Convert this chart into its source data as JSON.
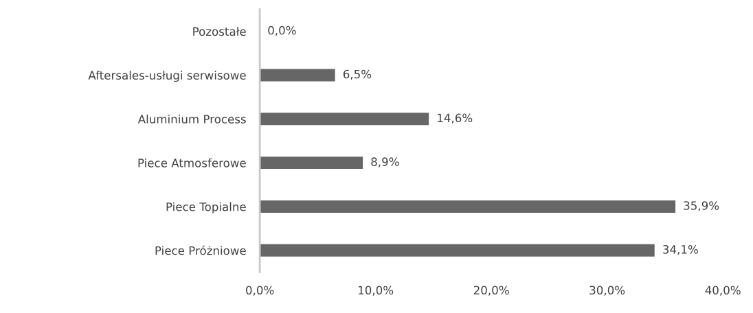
{
  "chart_data": {
    "type": "bar",
    "orientation": "horizontal",
    "categories": [
      "Pozostałe",
      "Aftersales-usługi serwisowe",
      "Aluminium Process",
      "Piece Atmosferowe",
      "Piece Topialne",
      "Piece Próżniowe"
    ],
    "values": [
      0.0,
      6.5,
      14.6,
      8.9,
      35.9,
      34.1
    ],
    "value_labels": [
      "0,0%",
      "6,5%",
      "14,6%",
      "8,9%",
      "35,9%",
      "34,1%"
    ],
    "color": "#666666",
    "xlim": [
      0,
      40
    ],
    "xticks": [
      {
        "value": 0,
        "label": "0,0%"
      },
      {
        "value": 10,
        "label": "10,0%"
      },
      {
        "value": 20,
        "label": "20,0%"
      },
      {
        "value": 30,
        "label": "30,0%"
      },
      {
        "value": 40,
        "label": "40,0%"
      }
    ],
    "grid": false,
    "legend": false
  }
}
